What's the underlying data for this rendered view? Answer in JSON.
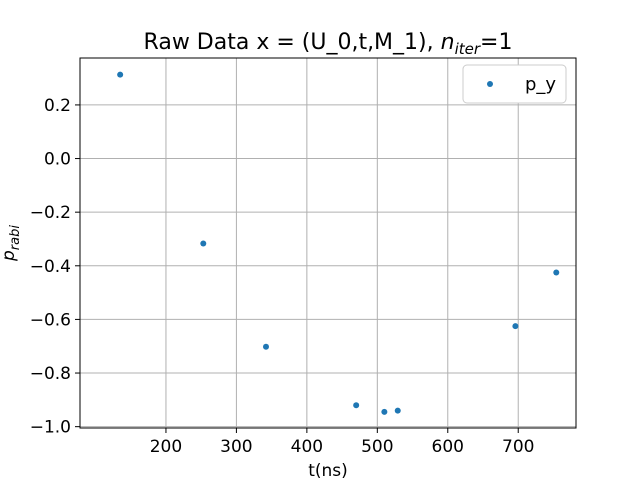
{
  "chart_data": {
    "type": "scatter",
    "title_prefix": "Raw Data x = (U_0,t,M_1),  ",
    "title_var": "n",
    "title_sub": "iter",
    "title_suffix": "=1",
    "xlabel": "t(ns)",
    "ylabel_main": "p",
    "ylabel_sub": "rabi",
    "xlim": [
      78,
      782
    ],
    "ylim": [
      -1.005,
      0.375
    ],
    "xticks": [
      200,
      300,
      400,
      500,
      600,
      700
    ],
    "yticks": [
      -1.0,
      -0.8,
      -0.6,
      -0.4,
      -0.2,
      0.0,
      0.2
    ],
    "ytick_labels": [
      "−1.0",
      "−0.8",
      "−0.6",
      "−0.4",
      "−0.2",
      "0.0",
      "0.2"
    ],
    "grid": true,
    "legend_position": "top-right",
    "series": [
      {
        "name": "p_y",
        "color": "#1f77b4",
        "x": [
          135,
          253,
          342,
          470,
          510,
          529,
          696,
          754
        ],
        "y": [
          0.313,
          -0.317,
          -0.702,
          -0.92,
          -0.945,
          -0.94,
          -0.625,
          -0.425
        ]
      }
    ]
  }
}
